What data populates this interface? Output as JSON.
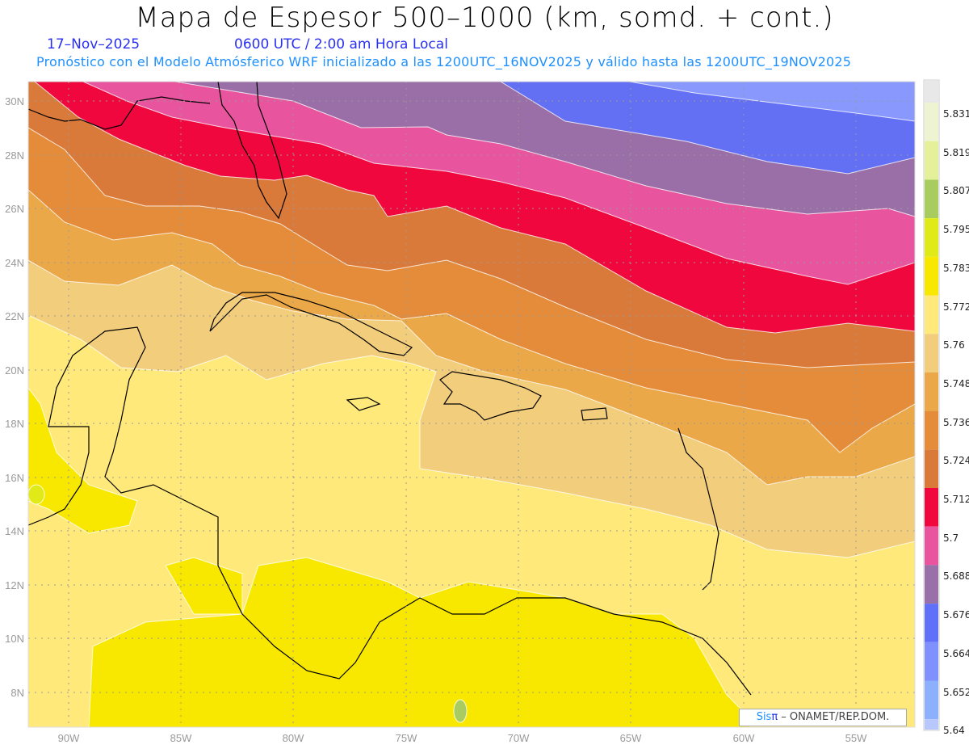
{
  "header": {
    "title": "Mapa de Espesor 500–1000 (km, somd. + cont.)",
    "date": "17–Nov–2025",
    "time": "0600 UTC / 2:00 am Hora Local",
    "subtitle": "Pronóstico con el Modelo Atmósferico WRF inicializado a las 1200UTC_16NOV2025 y válido hasta las  1200UTC_19NOV2025"
  },
  "map": {
    "lon_labels": [
      "90W",
      "85W",
      "80W",
      "75W",
      "70W",
      "65W",
      "60W",
      "55W"
    ],
    "lat_labels": [
      "30N",
      "28N",
      "26N",
      "24N",
      "22N",
      "20N",
      "18N",
      "16N",
      "14N",
      "12N",
      "10N",
      "8N"
    ]
  },
  "colorbar": {
    "colors": [
      "#e8e8e8",
      "#eef3d2",
      "#e4f09a",
      "#a8cc60",
      "#e0ea18",
      "#f8e800",
      "#ffe97a",
      "#f2cd7c",
      "#eba848",
      "#e48c3a",
      "#d97a3a",
      "#f0073e",
      "#e8559e",
      "#9a70a8",
      "#6070f8",
      "#8090fc",
      "#8cb0fc",
      "#b8c8fc"
    ],
    "labels": [
      "5.831",
      "5.819",
      "5.807",
      "5.795",
      "5.783",
      "5.772",
      "5.76",
      "5.748",
      "5.736",
      "5.724",
      "5.712",
      "5.7",
      "5.688",
      "5.676",
      "5.664",
      "5.652",
      "5.64"
    ]
  },
  "credit": {
    "sis": "Sis",
    "pi": "π",
    "org": " –  ONAMET/REP.DOM."
  }
}
